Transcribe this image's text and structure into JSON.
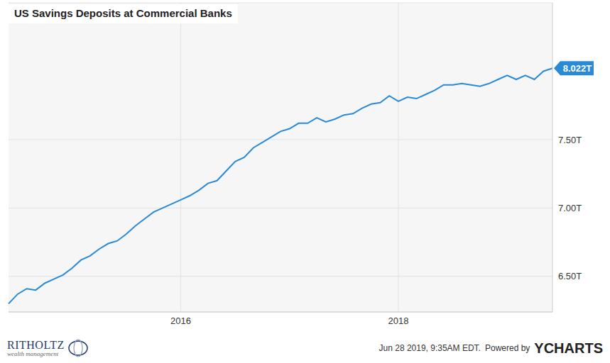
{
  "chart_data": {
    "type": "line",
    "title": "US Savings Deposits at Commercial Banks",
    "categories": [
      null,
      null,
      null,
      null,
      null,
      null,
      null,
      null,
      null,
      null,
      null,
      null,
      null,
      null,
      null,
      null,
      null,
      null,
      null,
      "2016",
      null,
      null,
      null,
      null,
      null,
      null,
      null,
      null,
      null,
      null,
      null,
      null,
      null,
      null,
      null,
      null,
      null,
      null,
      null,
      null,
      null,
      null,
      null,
      "2018",
      null,
      null,
      null,
      null,
      null,
      null,
      null,
      null,
      null,
      null,
      null,
      null,
      null,
      null,
      null,
      null,
      null
    ],
    "values": [
      6.3,
      6.37,
      6.41,
      6.4,
      6.45,
      6.48,
      6.51,
      6.56,
      6.62,
      6.65,
      6.7,
      6.74,
      6.76,
      6.81,
      6.87,
      6.92,
      6.97,
      7.0,
      7.03,
      7.06,
      7.09,
      7.13,
      7.18,
      7.2,
      7.27,
      7.34,
      7.37,
      7.44,
      7.48,
      7.52,
      7.56,
      7.58,
      7.62,
      7.62,
      7.66,
      7.63,
      7.65,
      7.68,
      7.69,
      7.73,
      7.76,
      7.77,
      7.82,
      7.78,
      7.81,
      7.8,
      7.83,
      7.86,
      7.9,
      7.9,
      7.91,
      7.9,
      7.89,
      7.91,
      7.94,
      7.97,
      7.94,
      7.97,
      7.94,
      8.0,
      8.022
    ],
    "color": "#2a8ad6",
    "ylim": [
      6.24,
      8.5
    ],
    "yticks": [
      {
        "value": 6.5,
        "label": "6.50T"
      },
      {
        "value": 7.0,
        "label": "7.00T"
      },
      {
        "value": 7.5,
        "label": "7.50T"
      }
    ],
    "grid": true,
    "annotations": [
      {
        "text": "8.022T",
        "value": 8.022
      }
    ],
    "footer": {
      "timestamp": "Jun 28 2019, 9:35AM EDT.",
      "powered_by": "Powered by",
      "brand": "YCHARTS",
      "logo": "RITHOLTZ",
      "logo_sub": "wealth management"
    }
  }
}
